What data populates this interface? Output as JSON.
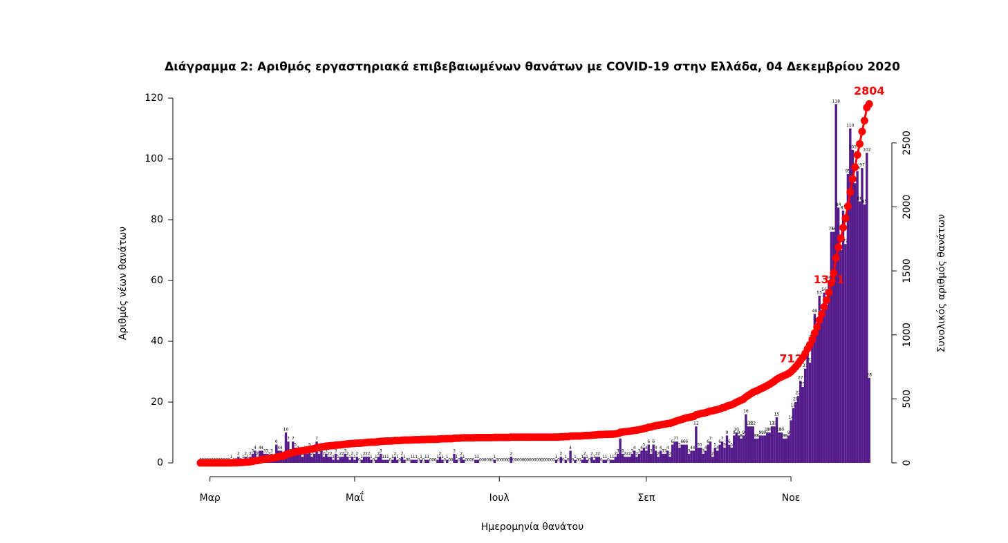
{
  "chart_data": {
    "type": "bar_line",
    "title": "Διάγραμμα 2: Αριθμός εργαστηριακά επιβεβαιωμένων θανάτων με COVID-19 στην Ελλάδα, 04 Δεκεμβρίου 2020",
    "xlabel": "Ημερομηνία θανάτου",
    "ylabel": "Αριθμός νέων θανάτων",
    "y2label": "Συνολικός αριθμός θανάτων",
    "ylim": [
      0,
      120
    ],
    "yticks": [
      0,
      20,
      40,
      60,
      80,
      100,
      120
    ],
    "y2lim": [
      0,
      2850
    ],
    "y2ticks": [
      0,
      500,
      1000,
      1500,
      2000,
      2500
    ],
    "categories": [
      null,
      null,
      null,
      null,
      "Μαρ",
      null,
      null,
      null,
      null,
      null,
      null,
      null,
      null,
      null,
      null,
      null,
      null,
      null,
      null,
      null,
      null,
      null,
      null,
      null,
      null,
      null,
      null,
      null,
      null,
      null,
      null,
      null,
      null,
      null,
      null,
      null,
      null,
      null,
      null,
      null,
      null,
      null,
      null,
      null,
      null,
      null,
      null,
      null,
      null,
      null,
      null,
      null,
      null,
      null,
      null,
      null,
      null,
      null,
      null,
      null,
      null,
      null,
      null,
      null,
      null,
      "Μαΐ",
      null,
      null,
      null,
      null,
      null,
      null,
      null,
      null,
      null,
      null,
      null,
      null,
      null,
      null,
      null,
      null,
      null,
      null,
      null,
      null,
      null,
      null,
      null,
      null,
      null,
      null,
      null,
      null,
      null,
      null,
      null,
      null,
      null,
      null,
      null,
      null,
      null,
      null,
      null,
      null,
      null,
      null,
      null,
      null,
      null,
      null,
      null,
      null,
      null,
      null,
      null,
      null,
      null,
      null,
      null,
      null,
      null,
      null,
      null,
      null,
      "Ιουλ",
      null,
      null,
      null,
      null,
      null,
      null,
      null,
      null,
      null,
      null,
      null,
      null,
      null,
      null,
      null,
      null,
      null,
      null,
      null,
      null,
      null,
      null,
      null,
      null,
      null,
      null,
      null,
      null,
      null,
      null,
      null,
      null,
      null,
      null,
      null,
      null,
      null,
      null,
      null,
      null,
      null,
      null,
      null,
      null,
      null,
      null,
      null,
      null,
      null,
      null,
      null,
      null,
      null,
      null,
      null,
      null,
      null,
      null,
      null,
      null,
      null,
      "Σεπ",
      null,
      null,
      null,
      null,
      null,
      null,
      null,
      null,
      null,
      null,
      null,
      null,
      null,
      null,
      null,
      null,
      null,
      null,
      null,
      null,
      null,
      null,
      null,
      null,
      null,
      null,
      null,
      null,
      null,
      null,
      null,
      null,
      null,
      null,
      null,
      null,
      null,
      null,
      null,
      null,
      null,
      null,
      null,
      null,
      null,
      null,
      null,
      null,
      null,
      null,
      null,
      null,
      null,
      null,
      null,
      null,
      null,
      null,
      null,
      null,
      "Νοε",
      null,
      null,
      null,
      null,
      null,
      null,
      null,
      null,
      null,
      null,
      null,
      null,
      null,
      null,
      null,
      null,
      null,
      null,
      null,
      null,
      null,
      null,
      null,
      null,
      null,
      null,
      null,
      null,
      null,
      null,
      null,
      null,
      null
    ],
    "series": [
      {
        "color": "#541b8a",
        "values": [
          0,
          0,
          0,
          0,
          0,
          0,
          0,
          0,
          0,
          0,
          0,
          0,
          0,
          1,
          0,
          0,
          2,
          0,
          1,
          2,
          1,
          2,
          3,
          4,
          2,
          4,
          4,
          3,
          3,
          2,
          3,
          1,
          6,
          4,
          4,
          2,
          10,
          7,
          3,
          7,
          5,
          4,
          3,
          2,
          3,
          3,
          5,
          2,
          3,
          7,
          3,
          4,
          2,
          3,
          2,
          2,
          1,
          3,
          1,
          2,
          2,
          3,
          2,
          1,
          2,
          1,
          2,
          0,
          1,
          2,
          2,
          2,
          1,
          0,
          1,
          2,
          3,
          1,
          1,
          1,
          0,
          1,
          2,
          1,
          0,
          2,
          1,
          0,
          0,
          1,
          1,
          1,
          0,
          1,
          0,
          1,
          1,
          0,
          0,
          0,
          1,
          2,
          1,
          0,
          1,
          0,
          0,
          3,
          1,
          0,
          2,
          1,
          0,
          0,
          0,
          0,
          1,
          1,
          0,
          0,
          0,
          0,
          0,
          0,
          1,
          0,
          0,
          0,
          0,
          0,
          0,
          2,
          0,
          0,
          0,
          0,
          0,
          0,
          0,
          0,
          0,
          0,
          0,
          0,
          0,
          0,
          0,
          0,
          0,
          0,
          1,
          0,
          2,
          0,
          1,
          0,
          4,
          0,
          1,
          0,
          0,
          1,
          2,
          1,
          0,
          2,
          1,
          2,
          2,
          0,
          1,
          1,
          0,
          1,
          1,
          2,
          3,
          8,
          3,
          2,
          2,
          2,
          3,
          4,
          2,
          3,
          4,
          5,
          4,
          6,
          3,
          6,
          4,
          2,
          4,
          3,
          3,
          4,
          2,
          6,
          7,
          7,
          5,
          6,
          6,
          6,
          3,
          4,
          4,
          12,
          5,
          5,
          3,
          4,
          6,
          7,
          2,
          5,
          4,
          6,
          7,
          5,
          9,
          6,
          5,
          9,
          10,
          9,
          8,
          9,
          16,
          12,
          12,
          12,
          8,
          8,
          9,
          9,
          9,
          10,
          10,
          12,
          12,
          15,
          10,
          10,
          8,
          8,
          9,
          14,
          18,
          20,
          22,
          27,
          25,
          31,
          36,
          33,
          41,
          49,
          46,
          55,
          48,
          56,
          52,
          60,
          76,
          76,
          118,
          84,
          70,
          83,
          72,
          95,
          110,
          103,
          92,
          96,
          86,
          97,
          85,
          102,
          28
        ]
      },
      {
        "color": "#ff0000",
        "axis": "y2",
        "labels_at": [
          249,
          265,
          282
        ],
        "values": [
          0,
          0,
          0,
          0,
          0,
          0,
          0,
          0,
          0,
          0,
          0,
          0,
          0,
          1,
          1,
          1,
          3,
          3,
          4,
          6,
          7,
          9,
          12,
          16,
          18,
          22,
          26,
          29,
          32,
          34,
          37,
          38,
          44,
          48,
          52,
          54,
          64,
          71,
          74,
          81,
          86,
          90,
          93,
          95,
          98,
          101,
          106,
          108,
          111,
          118,
          121,
          125,
          127,
          130,
          132,
          134,
          135,
          138,
          139,
          141,
          143,
          146,
          148,
          149,
          151,
          152,
          154,
          154,
          155,
          157,
          159,
          161,
          162,
          162,
          163,
          165,
          168,
          169,
          170,
          171,
          171,
          172,
          174,
          175,
          175,
          177,
          178,
          178,
          178,
          179,
          180,
          181,
          181,
          182,
          182,
          183,
          184,
          184,
          184,
          184,
          185,
          187,
          188,
          188,
          189,
          189,
          189,
          192,
          193,
          193,
          195,
          196,
          196,
          196,
          196,
          196,
          197,
          198,
          198,
          198,
          198,
          198,
          198,
          198,
          199,
          199,
          199,
          199,
          199,
          199,
          199,
          201,
          201,
          201,
          201,
          201,
          201,
          201,
          201,
          201,
          201,
          201,
          201,
          201,
          201,
          201,
          201,
          201,
          201,
          201,
          202,
          202,
          204,
          204,
          205,
          205,
          209,
          209,
          210,
          210,
          210,
          211,
          213,
          214,
          214,
          216,
          217,
          219,
          221,
          221,
          222,
          223,
          223,
          224,
          225,
          227,
          230,
          238,
          241,
          243,
          245,
          247,
          250,
          254,
          256,
          259,
          263,
          268,
          272,
          278,
          281,
          287,
          291,
          293,
          297,
          300,
          303,
          307,
          309,
          315,
          322,
          329,
          334,
          340,
          346,
          352,
          355,
          359,
          363,
          375,
          380,
          385,
          388,
          392,
          398,
          405,
          407,
          412,
          416,
          422,
          429,
          434,
          443,
          449,
          454,
          463,
          473,
          482,
          490,
          499,
          515,
          527,
          539,
          551,
          559,
          567,
          576,
          585,
          594,
          604,
          614,
          626,
          638,
          653,
          663,
          673,
          681,
          689,
          698,
          712,
          730,
          750,
          772,
          799,
          824,
          855,
          891,
          924,
          965,
          1014,
          1060,
          1115,
          1163,
          1219,
          1271,
          1331,
          1407,
          1483,
          1601,
          1685,
          1755,
          1838,
          1910,
          2005,
          2115,
          2218,
          2310,
          2406,
          2492,
          2589,
          2674,
          2776,
          2804
        ]
      }
    ]
  }
}
